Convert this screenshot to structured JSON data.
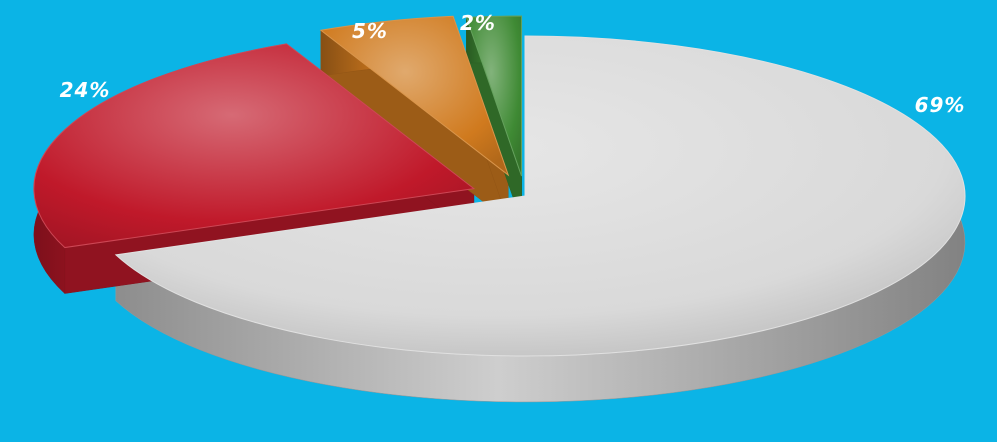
{
  "chart_data": {
    "type": "pie",
    "style": "3d-exploded",
    "legend": "none",
    "slices": [
      {
        "label": "69%",
        "value": 69,
        "color": "#d9d9d9"
      },
      {
        "label": "24%",
        "value": 24,
        "color": "#c0192a"
      },
      {
        "label": "5%",
        "value": 5,
        "color": "#d07a1e"
      },
      {
        "label": "2%",
        "value": 2,
        "color": "#3f8a34"
      }
    ]
  }
}
